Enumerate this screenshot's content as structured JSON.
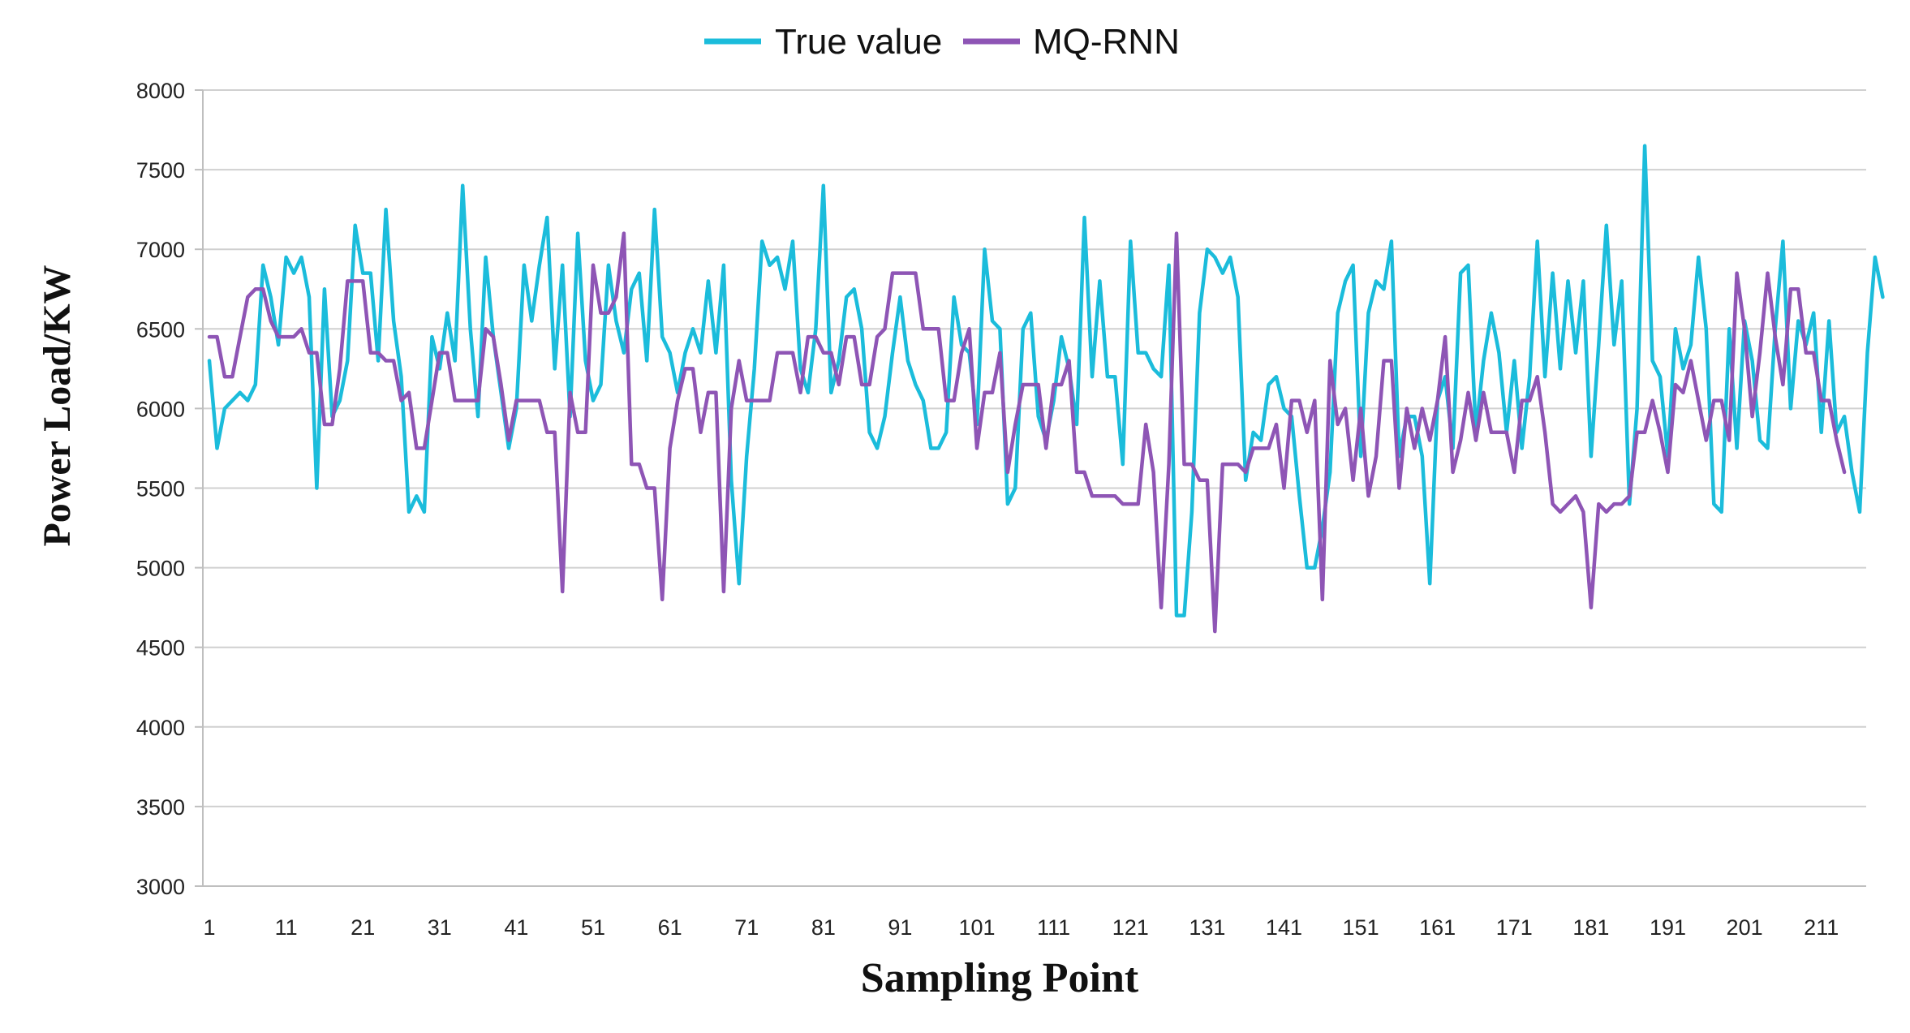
{
  "chart_data": {
    "type": "line",
    "title": "",
    "xlabel": "Sampling Point",
    "ylabel": "Power Load/KW",
    "ylim": [
      3000,
      8000
    ],
    "yticks": [
      3000,
      3500,
      4000,
      4500,
      5000,
      5500,
      6000,
      6500,
      7000,
      7500,
      8000
    ],
    "xlim": [
      1,
      216
    ],
    "xticks": [
      1,
      11,
      21,
      31,
      41,
      51,
      61,
      71,
      81,
      91,
      101,
      111,
      121,
      131,
      141,
      151,
      161,
      171,
      181,
      191,
      201,
      211
    ],
    "grid": "horizontal",
    "legend": "top-center",
    "series": [
      {
        "name": "True value",
        "color": "#1BBCDB",
        "values": [
          6300,
          5750,
          6000,
          6050,
          6100,
          6050,
          6150,
          6900,
          6700,
          6400,
          6950,
          6850,
          6950,
          6700,
          5500,
          6750,
          5950,
          6050,
          6300,
          7150,
          6850,
          6850,
          6300,
          7250,
          6550,
          6200,
          5350,
          5450,
          5350,
          6450,
          6250,
          6600,
          6300,
          7400,
          6500,
          5950,
          6950,
          6450,
          6100,
          5750,
          6000,
          6900,
          6550,
          6900,
          7200,
          6250,
          6900,
          5950,
          7100,
          6300,
          6050,
          6150,
          6900,
          6550,
          6350,
          6750,
          6850,
          6300,
          7250,
          6450,
          6350,
          6100,
          6350,
          6500,
          6350,
          6800,
          6350,
          6900,
          5550,
          4900,
          5700,
          6250,
          7050,
          6900,
          6950,
          6750,
          7050,
          6250,
          6100,
          6500,
          7400,
          6100,
          6300,
          6700,
          6750,
          6500,
          5850,
          5750,
          5950,
          6350,
          6700,
          6300,
          6150,
          6050,
          5750,
          5750,
          5850,
          6700,
          6400,
          6350,
          5900,
          7000,
          6550,
          6500,
          5400,
          5500,
          6500,
          6600,
          5950,
          5800,
          6050,
          6450,
          6250,
          5900,
          7200,
          6200,
          6800,
          6200,
          6200,
          5650,
          7050,
          6350,
          6350,
          6250,
          6200,
          6900,
          4700,
          4700,
          5350,
          6600,
          7000,
          6950,
          6850,
          6950,
          6700,
          5550,
          5850,
          5800,
          6150,
          6200,
          6000,
          5950,
          5450,
          5000,
          5000,
          5250,
          5600,
          6600,
          6800,
          6900,
          5700,
          6600,
          6800,
          6750,
          7050,
          5700,
          5950,
          5950,
          5700,
          4900,
          6050,
          6200,
          5750,
          6850,
          6900,
          5850,
          6300,
          6600,
          6350,
          5850,
          6300,
          5750,
          6200,
          7050,
          6200,
          6850,
          6250,
          6800,
          6350,
          6800,
          5700,
          6400,
          7150,
          6400,
          6800,
          5400,
          6000,
          7650,
          6300,
          6200,
          5700,
          6500,
          6250,
          6400,
          6950,
          6500,
          5400,
          5350,
          6500,
          5750,
          6550,
          6300,
          5800,
          5750,
          6500,
          7050,
          6000,
          6550,
          6400,
          6600,
          5850,
          6550,
          5850,
          5950,
          5600,
          5350,
          6350,
          6950,
          6700
        ]
      },
      {
        "name": "MQ-RNN",
        "color": "#8E55B5",
        "values": [
          6450,
          6450,
          6200,
          6200,
          6450,
          6700,
          6750,
          6750,
          6550,
          6450,
          6450,
          6450,
          6500,
          6350,
          6350,
          5900,
          5900,
          6250,
          6800,
          6800,
          6800,
          6350,
          6350,
          6300,
          6300,
          6050,
          6100,
          5750,
          5750,
          6050,
          6350,
          6350,
          6050,
          6050,
          6050,
          6050,
          6500,
          6450,
          6150,
          5800,
          6050,
          6050,
          6050,
          6050,
          5850,
          5850,
          4850,
          6100,
          5850,
          5850,
          6900,
          6600,
          6600,
          6700,
          7100,
          5650,
          5650,
          5500,
          5500,
          4800,
          5750,
          6050,
          6250,
          6250,
          5850,
          6100,
          6100,
          4850,
          6000,
          6300,
          6050,
          6050,
          6050,
          6050,
          6350,
          6350,
          6350,
          6100,
          6450,
          6450,
          6350,
          6350,
          6150,
          6450,
          6450,
          6150,
          6150,
          6450,
          6500,
          6850,
          6850,
          6850,
          6850,
          6500,
          6500,
          6500,
          6050,
          6050,
          6350,
          6500,
          5750,
          6100,
          6100,
          6350,
          5600,
          5900,
          6150,
          6150,
          6150,
          5750,
          6150,
          6150,
          6300,
          5600,
          5600,
          5450,
          5450,
          5450,
          5450,
          5400,
          5400,
          5400,
          5900,
          5600,
          4750,
          5650,
          7100,
          5650,
          5650,
          5550,
          5550,
          4600,
          5650,
          5650,
          5650,
          5600,
          5750,
          5750,
          5750,
          5900,
          5500,
          6050,
          6050,
          5850,
          6050,
          4800,
          6300,
          5900,
          6000,
          5550,
          6000,
          5450,
          5700,
          6300,
          6300,
          5500,
          6000,
          5750,
          6000,
          5800,
          6050,
          6450,
          5600,
          5800,
          6100,
          5800,
          6100,
          5850,
          5850,
          5850,
          5600,
          6050,
          6050,
          6200,
          5850,
          5400,
          5350,
          5400,
          5450,
          5350,
          4750,
          5400,
          5350,
          5400,
          5400,
          5450,
          5850,
          5850,
          6050,
          5850,
          5600,
          6150,
          6100,
          6300,
          6050,
          5800,
          6050,
          6050,
          5800,
          6850,
          6500,
          5950,
          6350,
          6850,
          6450,
          6150,
          6750,
          6750,
          6350,
          6350,
          6050,
          6050,
          5800,
          5600
        ]
      }
    ]
  }
}
